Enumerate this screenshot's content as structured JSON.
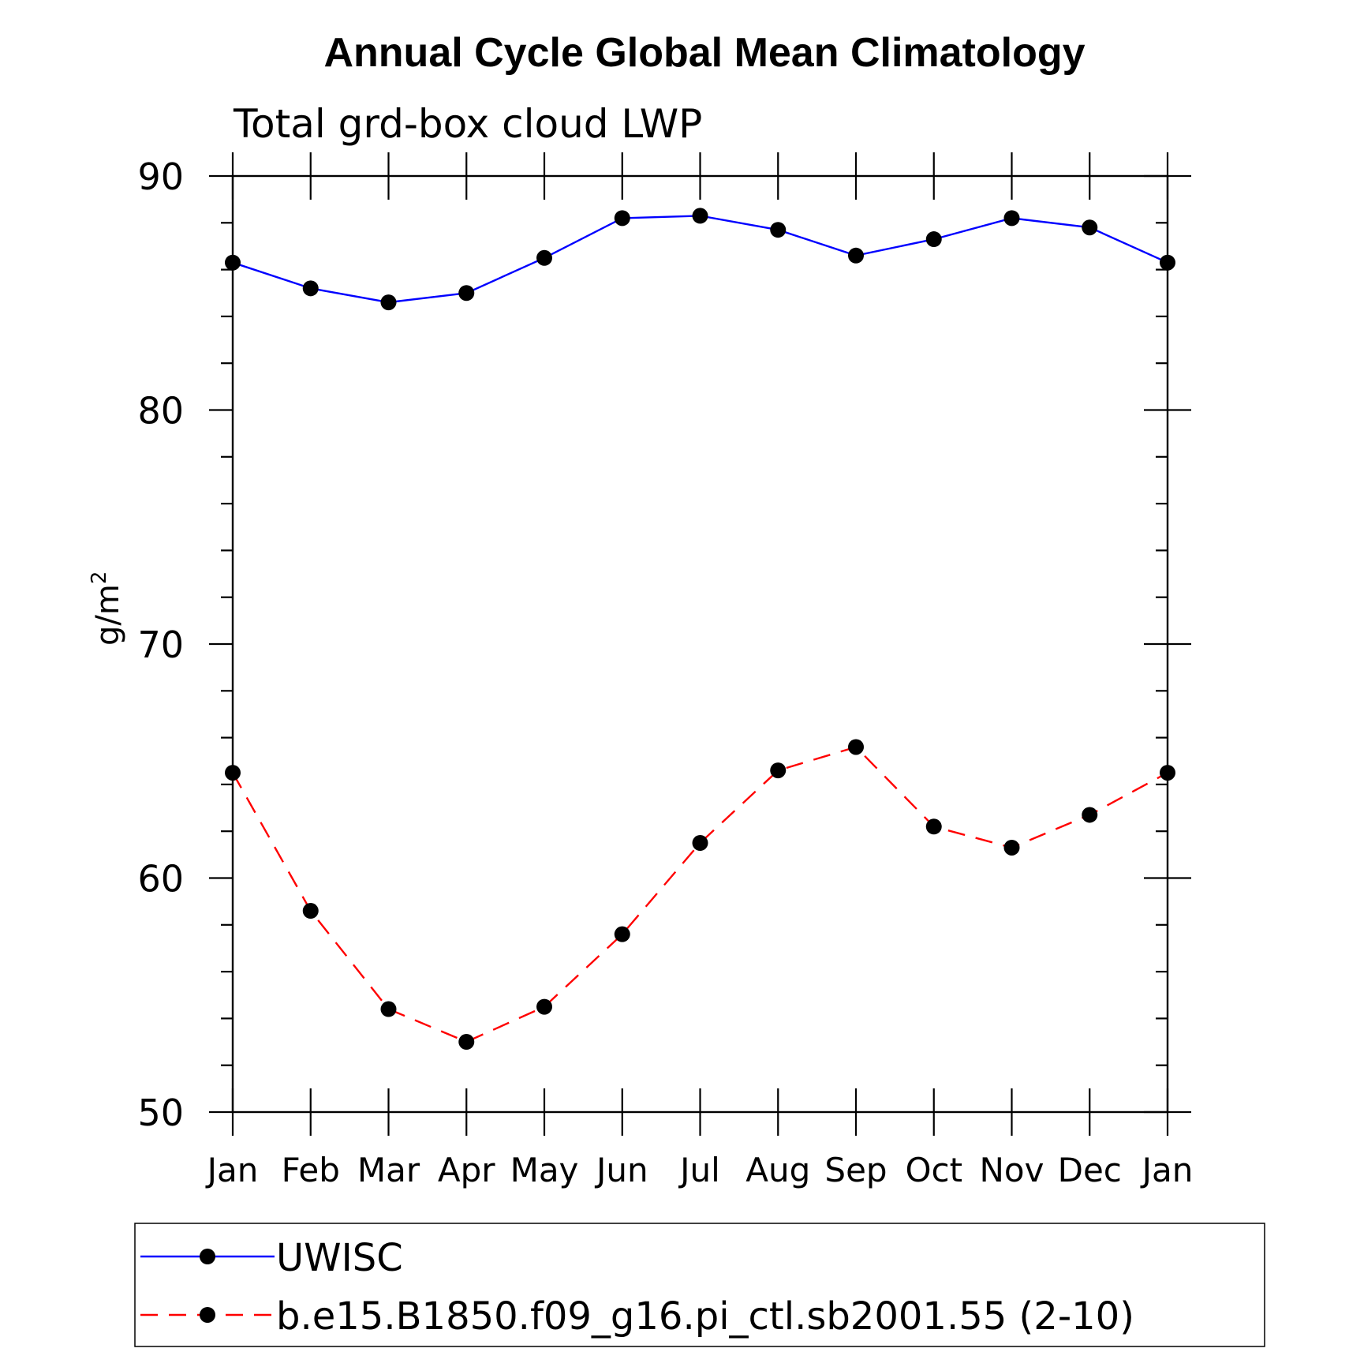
{
  "chart_data": {
    "type": "line",
    "title": "Annual Cycle Global Mean Climatology",
    "subtitle": "Total grd-box cloud LWP",
    "ylabel": "g/m",
    "ylabel_sup": "2",
    "xlabel": "",
    "categories": [
      "Jan",
      "Feb",
      "Mar",
      "Apr",
      "May",
      "Jun",
      "Jul",
      "Aug",
      "Sep",
      "Oct",
      "Nov",
      "Dec",
      "Jan"
    ],
    "ylim": [
      50,
      90
    ],
    "yticks": [
      50,
      60,
      70,
      80,
      90
    ],
    "series": [
      {
        "name": "UWISC",
        "color": "#0000ff",
        "dash": "solid",
        "values": [
          86.3,
          85.2,
          84.6,
          85.0,
          86.5,
          88.2,
          88.3,
          87.7,
          86.6,
          87.3,
          88.2,
          87.8,
          86.3
        ]
      },
      {
        "name": "b.e15.B1850.f09_g16.pi_ctl.sb2001.55 (2-10)",
        "color": "#ff0000",
        "dash": "dashed",
        "values": [
          64.5,
          58.6,
          54.4,
          53.0,
          54.5,
          57.6,
          61.5,
          64.6,
          65.6,
          62.2,
          61.3,
          62.7,
          64.5
        ]
      }
    ],
    "legend_position": "bottom"
  }
}
